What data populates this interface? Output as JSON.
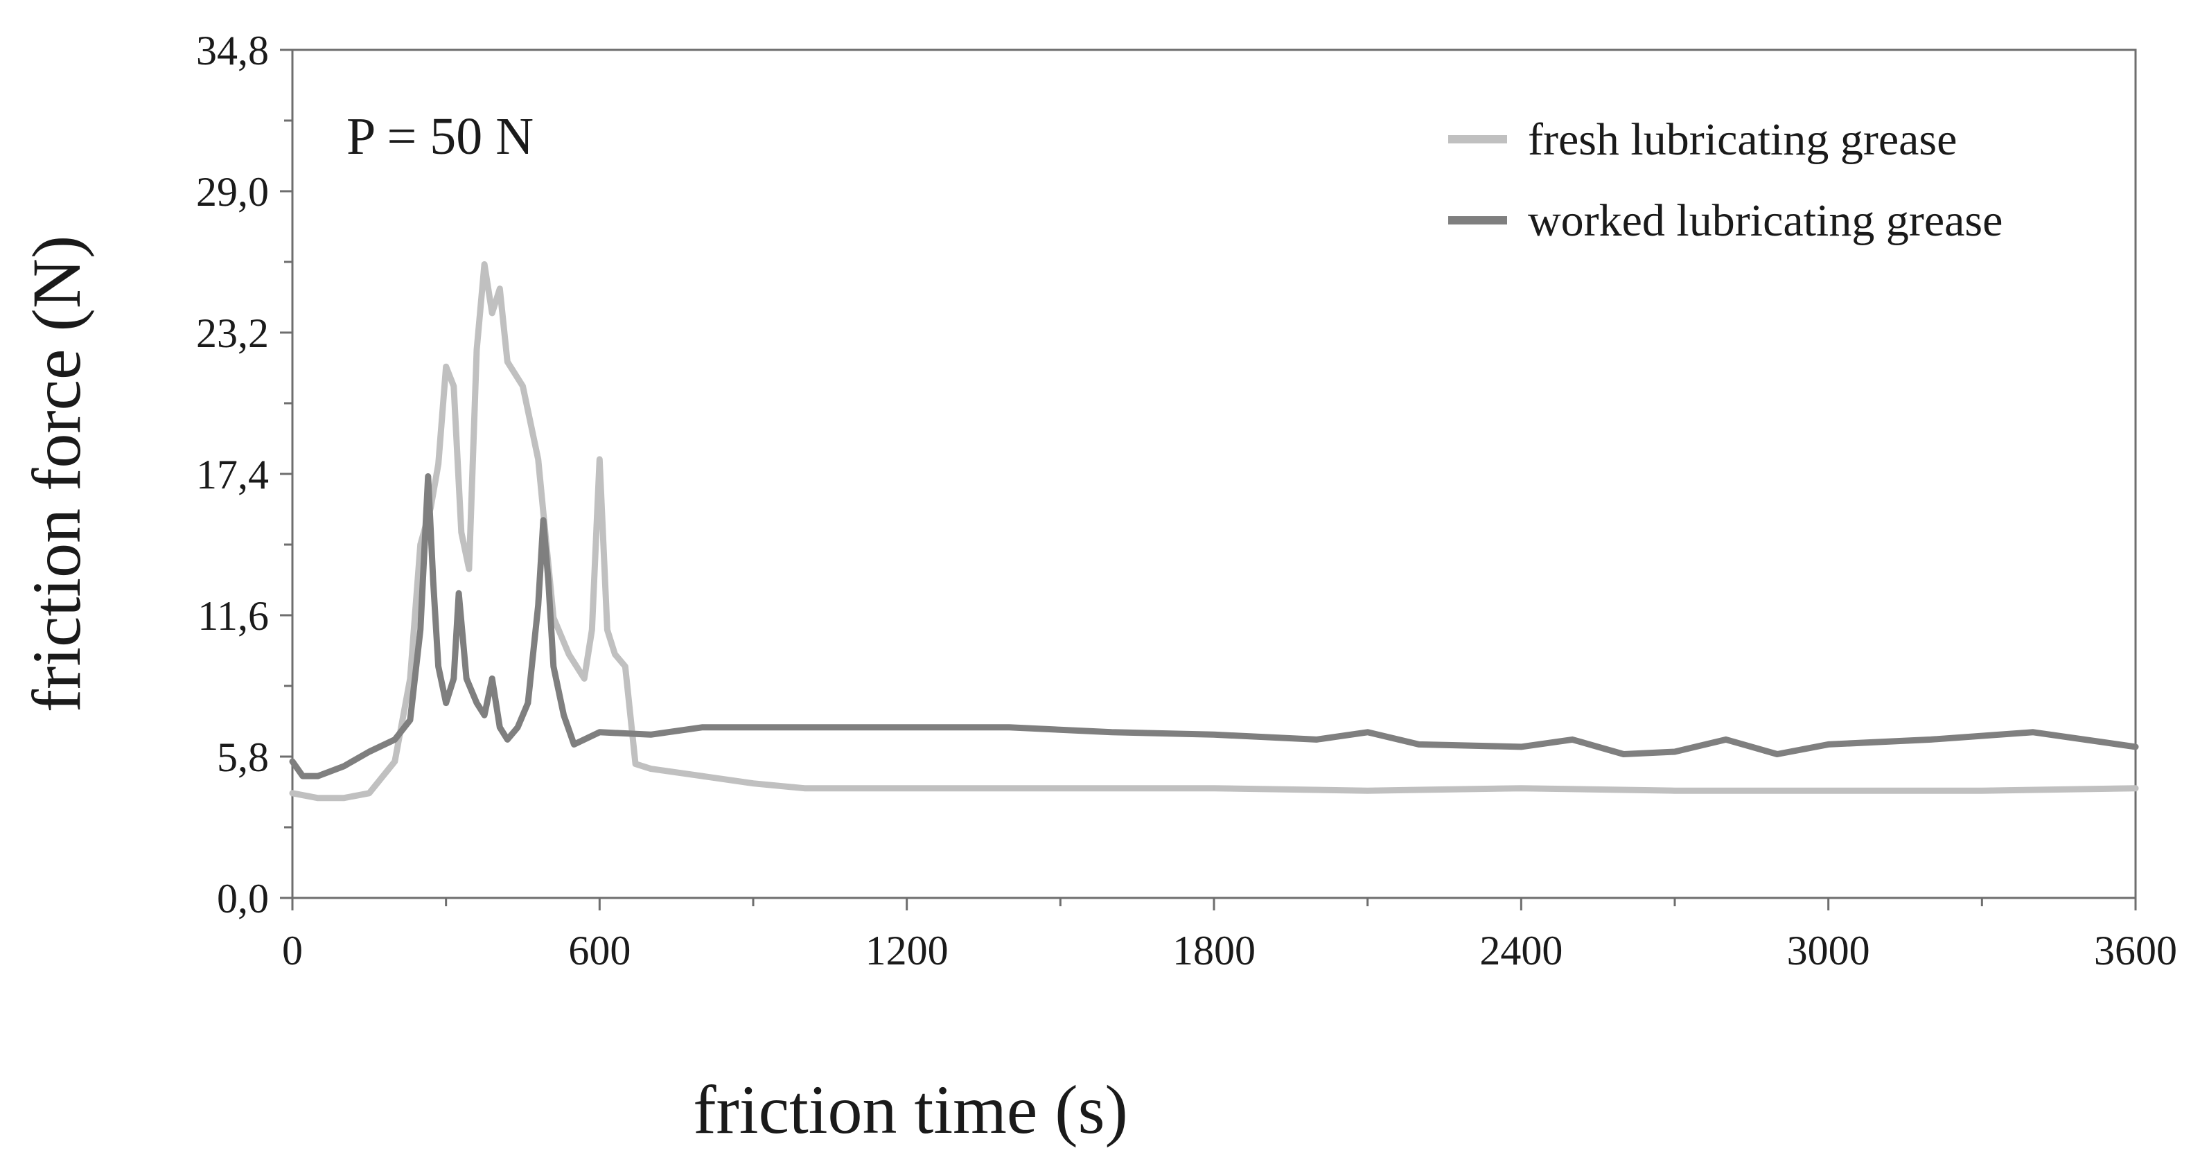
{
  "chart_data": {
    "type": "line",
    "title": "",
    "xlabel": "friction time (s)",
    "ylabel": "friction force (N)",
    "annotation": "P = 50 N",
    "xlim": [
      0,
      3600
    ],
    "ylim": [
      0,
      34.8
    ],
    "x_ticks": [
      "0",
      "600",
      "1200",
      "1800",
      "2400",
      "3000",
      "3600"
    ],
    "x_tick_values": [
      0,
      600,
      1200,
      1800,
      2400,
      3000,
      3600
    ],
    "y_ticks": [
      "0,0",
      "5,8",
      "11,6",
      "17,4",
      "23,2",
      "29,0",
      "34,8"
    ],
    "y_tick_values": [
      0,
      5.8,
      11.6,
      17.4,
      23.2,
      29.0,
      34.8
    ],
    "grid": false,
    "legend_position": "top-right",
    "series": [
      {
        "name": "fresh lubricating grease",
        "color": "#c0c0c0",
        "x": [
          0,
          50,
          100,
          150,
          200,
          230,
          250,
          270,
          285,
          300,
          315,
          330,
          345,
          360,
          375,
          390,
          405,
          420,
          450,
          480,
          510,
          540,
          570,
          585,
          600,
          615,
          630,
          650,
          670,
          700,
          800,
          900,
          1000,
          1200,
          1500,
          1800,
          2100,
          2400,
          2700,
          3000,
          3300,
          3600
        ],
        "values": [
          4.3,
          4.1,
          4.1,
          4.3,
          5.6,
          9.0,
          14.5,
          16.0,
          17.8,
          21.8,
          21.0,
          15.0,
          13.5,
          22.5,
          26.0,
          24.0,
          25.0,
          22.0,
          21.0,
          18.0,
          11.5,
          10.0,
          9.0,
          11.0,
          18.0,
          11.0,
          10.0,
          9.5,
          5.5,
          5.3,
          5.0,
          4.7,
          4.5,
          4.5,
          4.5,
          4.5,
          4.4,
          4.5,
          4.4,
          4.4,
          4.4,
          4.5
        ]
      },
      {
        "name": "worked lubricating grease",
        "color": "#7f7f7f",
        "x": [
          0,
          20,
          50,
          100,
          150,
          200,
          230,
          250,
          265,
          275,
          285,
          300,
          315,
          325,
          340,
          360,
          375,
          390,
          405,
          420,
          440,
          460,
          480,
          490,
          500,
          510,
          530,
          550,
          600,
          700,
          800,
          900,
          1000,
          1200,
          1400,
          1600,
          1800,
          2000,
          2100,
          2200,
          2400,
          2500,
          2600,
          2700,
          2800,
          2900,
          3000,
          3200,
          3400,
          3600
        ],
        "values": [
          5.6,
          5.0,
          5.0,
          5.4,
          6.0,
          6.5,
          7.3,
          11.0,
          17.3,
          13.0,
          9.5,
          8.0,
          9.0,
          12.5,
          9.0,
          8.0,
          7.5,
          9.0,
          7.0,
          6.5,
          7.0,
          8.0,
          12.0,
          15.5,
          13.0,
          9.5,
          7.5,
          6.3,
          6.8,
          6.7,
          7.0,
          7.0,
          7.0,
          7.0,
          7.0,
          6.8,
          6.7,
          6.5,
          6.8,
          6.3,
          6.2,
          6.5,
          5.9,
          6.0,
          6.5,
          5.9,
          6.3,
          6.5,
          6.8,
          6.2
        ]
      }
    ]
  }
}
